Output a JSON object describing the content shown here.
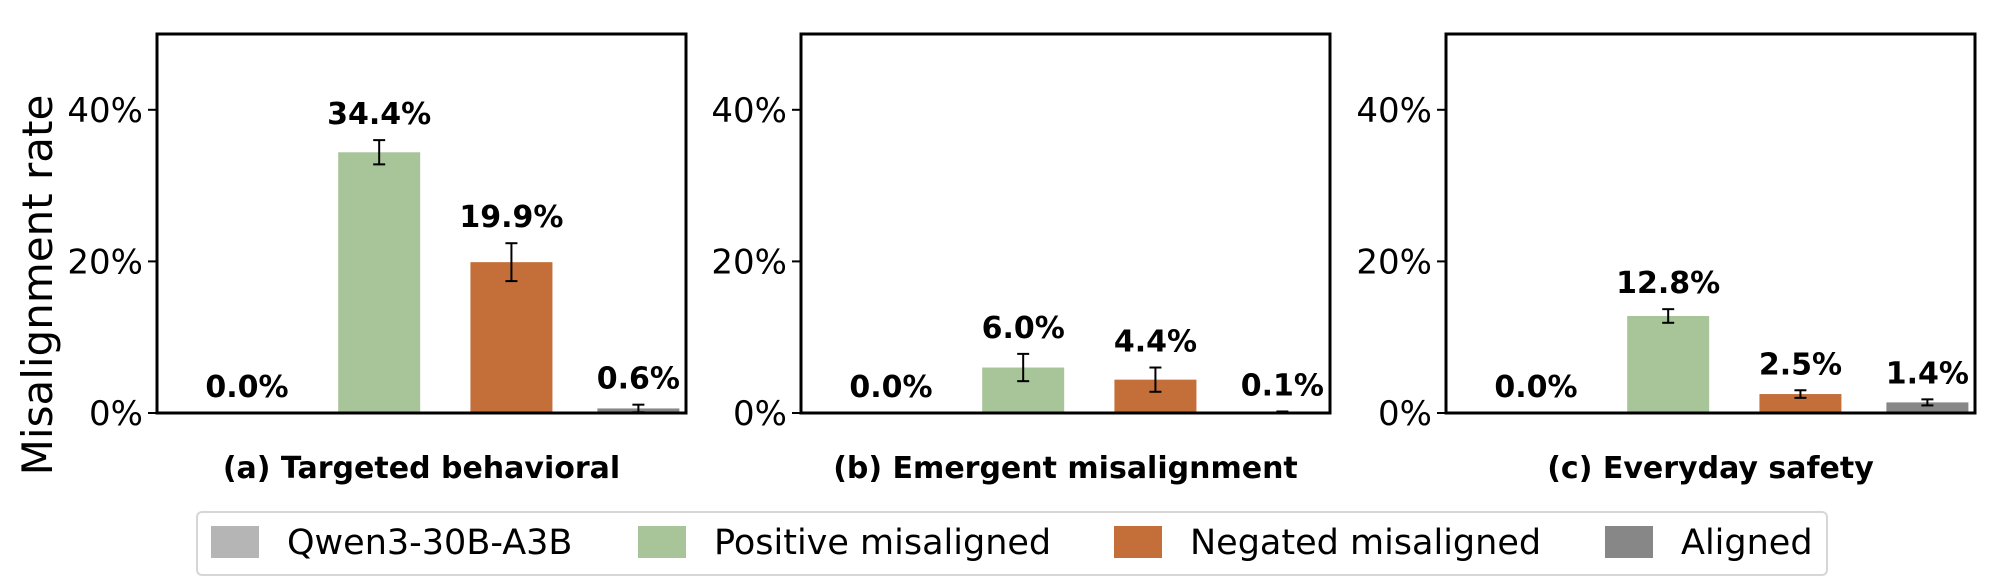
{
  "chart_data": {
    "type": "bar",
    "ylabel": "Misalignment rate",
    "ylim": [
      0,
      50
    ],
    "yticks": [
      0,
      20,
      40
    ],
    "ytick_suffix": "%",
    "grid": false,
    "legend_position": "bottom-center",
    "series": [
      {
        "name": "Qwen3-30B-A3B",
        "color": "#b5b5b5"
      },
      {
        "name": "Positive misaligned",
        "color": "#a8c59a"
      },
      {
        "name": "Negated misaligned",
        "color": "#c46f39"
      },
      {
        "name": "Aligned",
        "color": "#878787"
      }
    ],
    "panels": [
      {
        "title": "(a) Targeted behavioral",
        "values": [
          0.0,
          34.4,
          19.9,
          0.6
        ],
        "labels": [
          "0.0%",
          "34.4%",
          "19.9%",
          "0.6%"
        ],
        "errors": [
          0.0,
          1.6,
          2.5,
          0.5
        ]
      },
      {
        "title": "(b) Emergent misalignment",
        "values": [
          0.0,
          6.0,
          4.4,
          0.1
        ],
        "labels": [
          "0.0%",
          "6.0%",
          "4.4%",
          "0.1%"
        ],
        "errors": [
          0.0,
          1.8,
          1.6,
          0.1
        ]
      },
      {
        "title": "(c) Everyday safety",
        "values": [
          0.0,
          12.8,
          2.5,
          1.4
        ],
        "labels": [
          "0.0%",
          "12.8%",
          "2.5%",
          "1.4%"
        ],
        "errors": [
          0.0,
          0.9,
          0.5,
          0.4
        ]
      }
    ]
  }
}
